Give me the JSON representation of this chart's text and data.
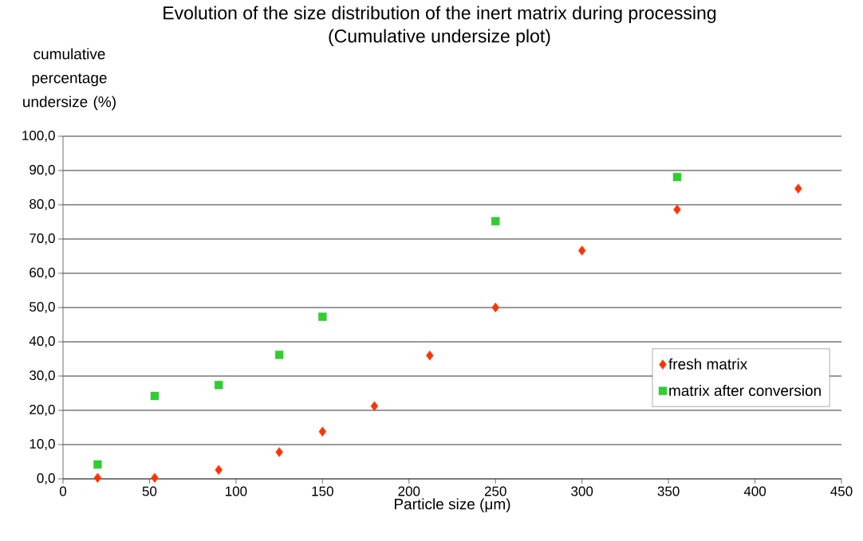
{
  "chart_data": {
    "type": "scatter",
    "title": "Evolution of the size distribution of the inert matrix during processing",
    "subtitle": "(Cumulative undersize plot)",
    "xlabel": "Particle size (μm)",
    "ylabel": "cumulative percentage undersize (%)",
    "xlim": [
      0,
      450
    ],
    "xticks": [
      0,
      50,
      100,
      150,
      200,
      250,
      300,
      350,
      400,
      450
    ],
    "ylim": [
      0,
      100
    ],
    "yticks": [
      {
        "value": 0,
        "label": "0,0"
      },
      {
        "value": 10,
        "label": "10,0"
      },
      {
        "value": 20,
        "label": "20,0"
      },
      {
        "value": 30,
        "label": "30,0"
      },
      {
        "value": 40,
        "label": "40,0"
      },
      {
        "value": 50,
        "label": "50,0"
      },
      {
        "value": 60,
        "label": "60,0"
      },
      {
        "value": 70,
        "label": "70,0"
      },
      {
        "value": 80,
        "label": "80,0"
      },
      {
        "value": 90,
        "label": "90,0"
      },
      {
        "value": 100,
        "label": "100,0"
      }
    ],
    "grid": "y",
    "legend": "right",
    "series": [
      {
        "name": "fresh matrix",
        "color": "#ff3300",
        "marker": "diamond",
        "x": [
          20,
          53,
          90,
          125,
          150,
          180,
          212,
          250,
          300,
          355,
          425
        ],
        "values": [
          0.3,
          0.3,
          2.6,
          7.8,
          13.8,
          21.2,
          36.0,
          50.0,
          66.6,
          78.6,
          84.7
        ]
      },
      {
        "name": "matrix after conversion",
        "color": "#33cc33",
        "marker": "square",
        "x": [
          20,
          53,
          90,
          125,
          150,
          250,
          355
        ],
        "values": [
          4.2,
          24.2,
          27.4,
          36.2,
          47.3,
          75.2,
          88.1
        ]
      }
    ]
  }
}
